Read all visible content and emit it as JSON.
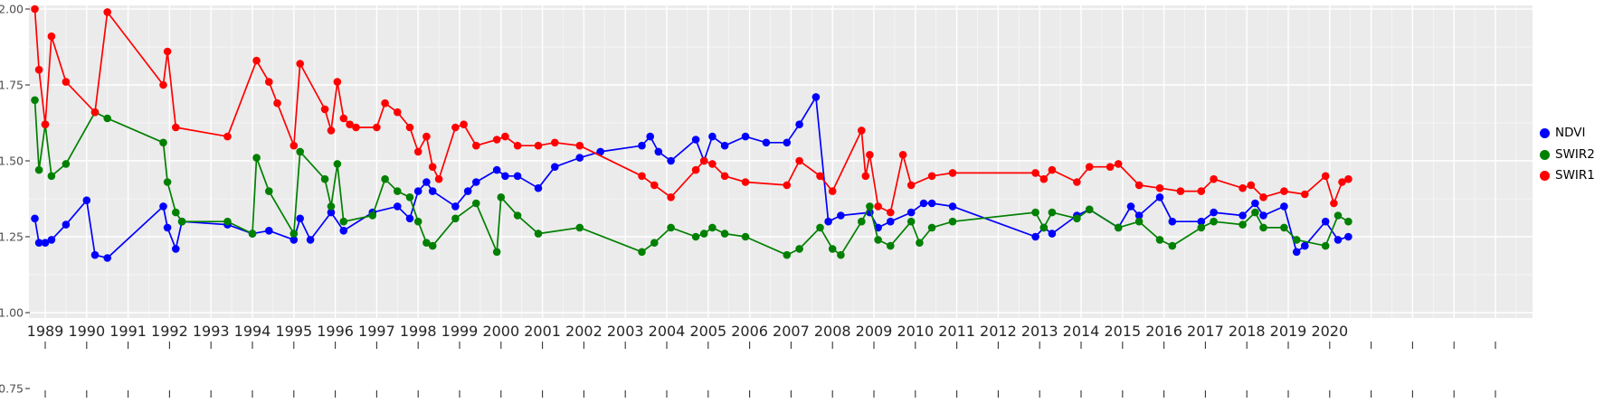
{
  "figure": {
    "background": "#FFFFFF",
    "panel_background": "#EBEBEB",
    "grid_color": "#FFFFFF",
    "axis_text_color_y": "#4D4D4D",
    "axis_text_color_x": "#262626",
    "tick_color": "#333333"
  },
  "chart_data": {
    "type": "line",
    "title": "",
    "xlabel": "",
    "ylabel": "",
    "legend_position": "right",
    "grid": true,
    "ylim": [
      0.75,
      2.0
    ],
    "xlim": [
      1988.6,
      2024.9
    ],
    "y_ticks": [
      2.0,
      1.75,
      1.5,
      1.25,
      1.0,
      0.75
    ],
    "x_ticks": [
      1989,
      1990,
      1991,
      1992,
      1993,
      1994,
      1995,
      1996,
      1997,
      1998,
      1999,
      2000,
      2001,
      2002,
      2003,
      2004,
      2005,
      2006,
      2007,
      2008,
      2009,
      2010,
      2011,
      2012,
      2013,
      2014,
      2015,
      2016,
      2017,
      2018,
      2019,
      2020
    ],
    "x_unlabeled_ticks": [
      2021,
      2022,
      2023,
      2024
    ],
    "series": [
      {
        "name": "NDVI",
        "color": "#0000FF",
        "points": [
          [
            1988.75,
            1.31
          ],
          [
            1988.85,
            1.23
          ],
          [
            1989.0,
            1.23
          ],
          [
            1989.15,
            1.24
          ],
          [
            1989.5,
            1.29
          ],
          [
            1990.0,
            1.37
          ],
          [
            1990.2,
            1.19
          ],
          [
            1990.5,
            1.18
          ],
          [
            1991.85,
            1.35
          ],
          [
            1991.95,
            1.28
          ],
          [
            1992.15,
            1.21
          ],
          [
            1992.3,
            1.3
          ],
          [
            1993.4,
            1.29
          ],
          [
            1994.0,
            1.26
          ],
          [
            1994.4,
            1.27
          ],
          [
            1995.0,
            1.24
          ],
          [
            1995.15,
            1.31
          ],
          [
            1995.4,
            1.24
          ],
          [
            1995.9,
            1.33
          ],
          [
            1996.2,
            1.27
          ],
          [
            1996.9,
            1.33
          ],
          [
            1997.5,
            1.35
          ],
          [
            1997.8,
            1.31
          ],
          [
            1998.0,
            1.4
          ],
          [
            1998.2,
            1.43
          ],
          [
            1998.35,
            1.4
          ],
          [
            1998.9,
            1.35
          ],
          [
            1999.2,
            1.4
          ],
          [
            1999.4,
            1.43
          ],
          [
            1999.9,
            1.47
          ],
          [
            2000.1,
            1.45
          ],
          [
            2000.4,
            1.45
          ],
          [
            2000.9,
            1.41
          ],
          [
            2001.3,
            1.48
          ],
          [
            2001.9,
            1.51
          ],
          [
            2002.4,
            1.53
          ],
          [
            2003.4,
            1.55
          ],
          [
            2003.6,
            1.58
          ],
          [
            2003.8,
            1.53
          ],
          [
            2004.1,
            1.5
          ],
          [
            2004.7,
            1.57
          ],
          [
            2004.9,
            1.5
          ],
          [
            2005.1,
            1.58
          ],
          [
            2005.4,
            1.55
          ],
          [
            2005.9,
            1.58
          ],
          [
            2006.4,
            1.56
          ],
          [
            2006.9,
            1.56
          ],
          [
            2007.2,
            1.62
          ],
          [
            2007.6,
            1.71
          ],
          [
            2007.9,
            1.3
          ],
          [
            2008.2,
            1.32
          ],
          [
            2008.9,
            1.33
          ],
          [
            2009.1,
            1.28
          ],
          [
            2009.4,
            1.3
          ],
          [
            2009.9,
            1.33
          ],
          [
            2010.2,
            1.36
          ],
          [
            2010.4,
            1.36
          ],
          [
            2010.9,
            1.35
          ],
          [
            2012.9,
            1.25
          ],
          [
            2013.1,
            1.28
          ],
          [
            2013.3,
            1.26
          ],
          [
            2013.9,
            1.32
          ],
          [
            2014.2,
            1.34
          ],
          [
            2014.9,
            1.28
          ],
          [
            2015.2,
            1.35
          ],
          [
            2015.4,
            1.32
          ],
          [
            2015.9,
            1.38
          ],
          [
            2016.2,
            1.3
          ],
          [
            2016.9,
            1.3
          ],
          [
            2017.2,
            1.33
          ],
          [
            2017.9,
            1.32
          ],
          [
            2018.2,
            1.36
          ],
          [
            2018.4,
            1.32
          ],
          [
            2018.9,
            1.35
          ],
          [
            2019.2,
            1.2
          ],
          [
            2019.4,
            1.22
          ],
          [
            2019.9,
            1.3
          ],
          [
            2020.2,
            1.24
          ],
          [
            2020.45,
            1.25
          ]
        ]
      },
      {
        "name": "SWIR2",
        "color": "#008000",
        "points": [
          [
            1988.75,
            1.7
          ],
          [
            1988.85,
            1.47
          ],
          [
            1989.0,
            1.62
          ],
          [
            1989.15,
            1.45
          ],
          [
            1989.5,
            1.49
          ],
          [
            1990.2,
            1.66
          ],
          [
            1990.5,
            1.64
          ],
          [
            1991.85,
            1.56
          ],
          [
            1991.95,
            1.43
          ],
          [
            1992.15,
            1.33
          ],
          [
            1992.3,
            1.3
          ],
          [
            1993.4,
            1.3
          ],
          [
            1994.0,
            1.26
          ],
          [
            1994.1,
            1.51
          ],
          [
            1994.4,
            1.4
          ],
          [
            1995.0,
            1.26
          ],
          [
            1995.15,
            1.53
          ],
          [
            1995.75,
            1.44
          ],
          [
            1995.9,
            1.35
          ],
          [
            1996.05,
            1.49
          ],
          [
            1996.2,
            1.3
          ],
          [
            1996.9,
            1.32
          ],
          [
            1997.2,
            1.44
          ],
          [
            1997.5,
            1.4
          ],
          [
            1997.8,
            1.38
          ],
          [
            1998.0,
            1.3
          ],
          [
            1998.2,
            1.23
          ],
          [
            1998.35,
            1.22
          ],
          [
            1998.9,
            1.31
          ],
          [
            1999.4,
            1.36
          ],
          [
            1999.9,
            1.2
          ],
          [
            2000.0,
            1.38
          ],
          [
            2000.4,
            1.32
          ],
          [
            2000.9,
            1.26
          ],
          [
            2001.9,
            1.28
          ],
          [
            2003.4,
            1.2
          ],
          [
            2003.7,
            1.23
          ],
          [
            2004.1,
            1.28
          ],
          [
            2004.7,
            1.25
          ],
          [
            2004.9,
            1.26
          ],
          [
            2005.1,
            1.28
          ],
          [
            2005.4,
            1.26
          ],
          [
            2005.9,
            1.25
          ],
          [
            2006.9,
            1.19
          ],
          [
            2007.2,
            1.21
          ],
          [
            2007.7,
            1.28
          ],
          [
            2008.0,
            1.21
          ],
          [
            2008.2,
            1.19
          ],
          [
            2008.7,
            1.3
          ],
          [
            2008.9,
            1.35
          ],
          [
            2009.1,
            1.24
          ],
          [
            2009.4,
            1.22
          ],
          [
            2009.9,
            1.3
          ],
          [
            2010.1,
            1.23
          ],
          [
            2010.4,
            1.28
          ],
          [
            2010.9,
            1.3
          ],
          [
            2012.9,
            1.33
          ],
          [
            2013.1,
            1.28
          ],
          [
            2013.3,
            1.33
          ],
          [
            2013.9,
            1.31
          ],
          [
            2014.2,
            1.34
          ],
          [
            2014.9,
            1.28
          ],
          [
            2015.4,
            1.3
          ],
          [
            2015.9,
            1.24
          ],
          [
            2016.2,
            1.22
          ],
          [
            2016.9,
            1.28
          ],
          [
            2017.2,
            1.3
          ],
          [
            2017.9,
            1.29
          ],
          [
            2018.2,
            1.33
          ],
          [
            2018.4,
            1.28
          ],
          [
            2018.9,
            1.28
          ],
          [
            2019.2,
            1.24
          ],
          [
            2019.9,
            1.22
          ],
          [
            2020.2,
            1.32
          ],
          [
            2020.45,
            1.3
          ]
        ]
      },
      {
        "name": "SWIR1",
        "color": "#FF0000",
        "points": [
          [
            1988.75,
            2.0
          ],
          [
            1988.85,
            1.8
          ],
          [
            1989.0,
            1.62
          ],
          [
            1989.15,
            1.91
          ],
          [
            1989.5,
            1.76
          ],
          [
            1990.2,
            1.66
          ],
          [
            1990.5,
            1.99
          ],
          [
            1991.85,
            1.75
          ],
          [
            1991.95,
            1.86
          ],
          [
            1992.15,
            1.61
          ],
          [
            1993.4,
            1.58
          ],
          [
            1994.1,
            1.83
          ],
          [
            1994.4,
            1.76
          ],
          [
            1994.6,
            1.69
          ],
          [
            1995.0,
            1.55
          ],
          [
            1995.15,
            1.82
          ],
          [
            1995.75,
            1.67
          ],
          [
            1995.9,
            1.6
          ],
          [
            1996.05,
            1.76
          ],
          [
            1996.2,
            1.64
          ],
          [
            1996.35,
            1.62
          ],
          [
            1996.5,
            1.61
          ],
          [
            1997.0,
            1.61
          ],
          [
            1997.2,
            1.69
          ],
          [
            1997.5,
            1.66
          ],
          [
            1997.8,
            1.61
          ],
          [
            1998.0,
            1.53
          ],
          [
            1998.2,
            1.58
          ],
          [
            1998.35,
            1.48
          ],
          [
            1998.5,
            1.44
          ],
          [
            1998.9,
            1.61
          ],
          [
            1999.1,
            1.62
          ],
          [
            1999.4,
            1.55
          ],
          [
            1999.9,
            1.57
          ],
          [
            2000.1,
            1.58
          ],
          [
            2000.4,
            1.55
          ],
          [
            2000.9,
            1.55
          ],
          [
            2001.3,
            1.56
          ],
          [
            2001.9,
            1.55
          ],
          [
            2003.4,
            1.45
          ],
          [
            2003.7,
            1.42
          ],
          [
            2004.1,
            1.38
          ],
          [
            2004.7,
            1.47
          ],
          [
            2004.9,
            1.5
          ],
          [
            2005.1,
            1.49
          ],
          [
            2005.4,
            1.45
          ],
          [
            2005.9,
            1.43
          ],
          [
            2006.9,
            1.42
          ],
          [
            2007.2,
            1.5
          ],
          [
            2007.7,
            1.45
          ],
          [
            2008.0,
            1.4
          ],
          [
            2008.7,
            1.6
          ],
          [
            2008.8,
            1.45
          ],
          [
            2008.9,
            1.52
          ],
          [
            2009.1,
            1.35
          ],
          [
            2009.4,
            1.33
          ],
          [
            2009.7,
            1.52
          ],
          [
            2009.9,
            1.42
          ],
          [
            2010.4,
            1.45
          ],
          [
            2010.9,
            1.46
          ],
          [
            2012.9,
            1.46
          ],
          [
            2013.1,
            1.44
          ],
          [
            2013.3,
            1.47
          ],
          [
            2013.9,
            1.43
          ],
          [
            2014.2,
            1.48
          ],
          [
            2014.7,
            1.48
          ],
          [
            2014.9,
            1.49
          ],
          [
            2015.4,
            1.42
          ],
          [
            2015.9,
            1.41
          ],
          [
            2016.4,
            1.4
          ],
          [
            2016.9,
            1.4
          ],
          [
            2017.2,
            1.44
          ],
          [
            2017.9,
            1.41
          ],
          [
            2018.1,
            1.42
          ],
          [
            2018.4,
            1.38
          ],
          [
            2018.9,
            1.4
          ],
          [
            2019.4,
            1.39
          ],
          [
            2019.9,
            1.45
          ],
          [
            2020.1,
            1.36
          ],
          [
            2020.3,
            1.43
          ],
          [
            2020.45,
            1.44
          ]
        ]
      }
    ]
  }
}
